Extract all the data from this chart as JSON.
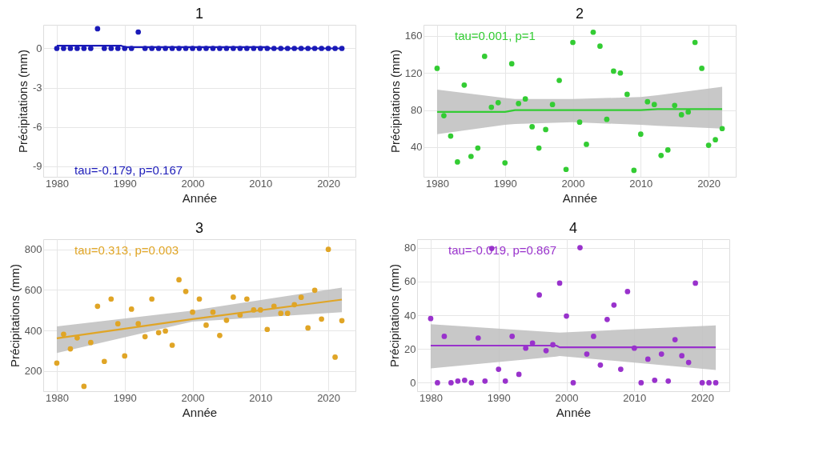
{
  "chart_data": [
    {
      "type": "scatter",
      "title": "1",
      "xlabel": "Année",
      "ylabel": "Précipitations (mm)",
      "annotations": [
        "tau=-0.179, p=0.167"
      ],
      "xlim": [
        1978,
        2024
      ],
      "xticks": [
        1980,
        1990,
        2000,
        2010,
        2020
      ],
      "ylim": [
        -9.8,
        1.8
      ],
      "yticks": [
        -9,
        -6,
        -3,
        0
      ],
      "grid": true,
      "x": [
        1980,
        1981,
        1982,
        1983,
        1984,
        1985,
        1986,
        1987,
        1988,
        1989,
        1990,
        1991,
        1992,
        1993,
        1994,
        1995,
        1996,
        1997,
        1998,
        1999,
        2000,
        2001,
        2002,
        2003,
        2004,
        2005,
        2006,
        2007,
        2008,
        2009,
        2010,
        2011,
        2012,
        2013,
        2014,
        2015,
        2016,
        2017,
        2018,
        2019,
        2020,
        2021,
        2022
      ],
      "series": [
        {
          "color": "#1a1ab8",
          "marker": "circle",
          "values": [
            0,
            0,
            0,
            0,
            0,
            0,
            1.5,
            0,
            0,
            0,
            0,
            0,
            1.25,
            0,
            0,
            0,
            0,
            0,
            0,
            0,
            0,
            0,
            0,
            0,
            0,
            0,
            0,
            0,
            0,
            0,
            0,
            0,
            0,
            0,
            0,
            0,
            0,
            0,
            0,
            0,
            0,
            0,
            0
          ]
        },
        {
          "type": "line",
          "color": "#1a1ab8",
          "x": [
            1980,
            1989.5,
            1990,
            2011,
            2011.5,
            2022
          ],
          "values": [
            0.2,
            0.2,
            0.1,
            0.1,
            0,
            0
          ]
        }
      ]
    },
    {
      "type": "scatter",
      "title": "2",
      "xlabel": "Année",
      "ylabel": "Précipitations (mm)",
      "annotations": [
        "tau=0.001, p=1"
      ],
      "xlim": [
        1978,
        2024
      ],
      "xticks": [
        1980,
        1990,
        2000,
        2010,
        2020
      ],
      "ylim": [
        8,
        172
      ],
      "yticks": [
        40,
        80,
        120,
        160
      ],
      "grid": true,
      "x": [
        1980,
        1981,
        1982,
        1983,
        1984,
        1985,
        1986,
        1987,
        1988,
        1989,
        1990,
        1991,
        1992,
        1993,
        1994,
        1995,
        1996,
        1997,
        1998,
        1999,
        2000,
        2001,
        2002,
        2003,
        2004,
        2005,
        2006,
        2007,
        2008,
        2009,
        2010,
        2011,
        2012,
        2013,
        2014,
        2015,
        2016,
        2017,
        2018,
        2019,
        2020,
        2021,
        2022
      ],
      "series": [
        {
          "color": "#33cc33",
          "marker": "circle",
          "values": [
            125,
            74,
            52,
            24,
            107,
            30,
            39,
            138,
            83,
            88,
            23,
            130,
            87,
            92,
            62,
            39,
            59,
            86,
            112,
            16,
            153,
            67,
            43,
            164,
            149,
            70,
            122,
            120,
            97,
            15,
            54,
            89,
            86,
            31,
            37,
            85,
            75,
            78,
            153,
            125,
            42,
            48,
            60
          ]
        },
        {
          "type": "line",
          "color": "#33cc33",
          "x": [
            1980,
            1990,
            1991.5,
            2000,
            2010,
            2012.5,
            2022
          ],
          "values": [
            78,
            78,
            80,
            80,
            80,
            81,
            81
          ],
          "lower": [
            54,
            64,
            65,
            67,
            64,
            63,
            60
          ],
          "upper": [
            102,
            93,
            92,
            92,
            94,
            96,
            105
          ]
        }
      ]
    },
    {
      "type": "scatter",
      "title": "3",
      "xlabel": "Année",
      "ylabel": "Précipitations (mm)",
      "annotations": [
        "tau=0.313, p=0.003"
      ],
      "xlim": [
        1978,
        2024
      ],
      "xticks": [
        1980,
        1990,
        2000,
        2010,
        2020
      ],
      "ylim": [
        100,
        850
      ],
      "yticks": [
        200,
        400,
        600,
        800
      ],
      "grid": true,
      "x": [
        1980,
        1981,
        1982,
        1983,
        1984,
        1985,
        1986,
        1987,
        1988,
        1989,
        1990,
        1991,
        1992,
        1993,
        1994,
        1995,
        1996,
        1997,
        1998,
        1999,
        2000,
        2001,
        2002,
        2003,
        2004,
        2005,
        2006,
        2007,
        2008,
        2009,
        2010,
        2011,
        2012,
        2013,
        2014,
        2015,
        2016,
        2017,
        2018,
        2019,
        2020,
        2021,
        2022
      ],
      "series": [
        {
          "color": "#e0a526",
          "marker": "circle",
          "values": [
            239,
            381,
            309,
            363,
            124,
            340,
            519,
            247,
            555,
            433,
            274,
            505,
            433,
            369,
            555,
            389,
            397,
            327,
            650,
            592,
            490,
            555,
            426,
            490,
            375,
            450,
            564,
            476,
            555,
            501,
            501,
            405,
            519,
            484,
            484,
            527,
            563,
            412,
            598,
            456,
            800,
            268,
            448
          ]
        },
        {
          "type": "line",
          "color": "#e0a526",
          "x": [
            1980,
            2000,
            2022
          ],
          "values": [
            361,
            456,
            552
          ],
          "lower": [
            288,
            443,
            490
          ],
          "upper": [
            420,
            498,
            611
          ]
        }
      ]
    },
    {
      "type": "scatter",
      "title": "4",
      "xlabel": "Année",
      "ylabel": "Précipitations (mm)",
      "annotations": [
        "tau=-0.019, p=0.867"
      ],
      "xlim": [
        1978,
        2024
      ],
      "xticks": [
        1980,
        1990,
        2000,
        2010,
        2020
      ],
      "ylim": [
        -5,
        85
      ],
      "yticks": [
        0,
        20,
        40,
        60,
        80
      ],
      "grid": true,
      "x": [
        1980,
        1981,
        1982,
        1983,
        1984,
        1985,
        1986,
        1987,
        1988,
        1989,
        1990,
        1991,
        1992,
        1993,
        1994,
        1995,
        1996,
        1997,
        1998,
        1999,
        2000,
        2001,
        2002,
        2003,
        2004,
        2005,
        2006,
        2007,
        2008,
        2009,
        2010,
        2011,
        2012,
        2013,
        2014,
        2015,
        2016,
        2017,
        2018,
        2019,
        2020,
        2021,
        2022
      ],
      "series": [
        {
          "color": "#9932cc",
          "marker": "circle",
          "values": [
            38,
            0,
            27.5,
            0,
            1,
            1.5,
            0,
            26.5,
            1,
            79.5,
            8,
            1,
            27.5,
            5,
            20.5,
            23.5,
            52,
            19,
            22.5,
            59,
            39.5,
            0,
            80,
            17,
            27.5,
            10.5,
            37.5,
            46,
            8,
            54,
            20.5,
            0,
            14,
            1.5,
            17,
            1,
            25.5,
            16,
            12,
            59,
            0,
            0,
            0
          ]
        },
        {
          "type": "line",
          "color": "#9932cc",
          "x": [
            1980,
            1998.5,
            1999,
            2022
          ],
          "values": [
            22,
            22,
            21,
            21
          ],
          "lower": [
            8.5,
            15.5,
            15.9,
            7.6
          ],
          "upper": [
            34.7,
            29.8,
            29.7,
            34
          ]
        }
      ]
    }
  ]
}
